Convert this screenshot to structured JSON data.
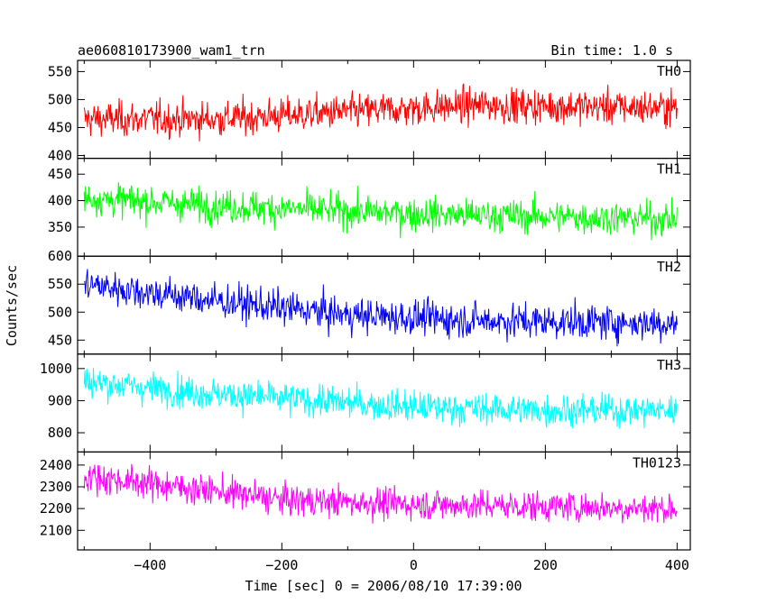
{
  "chart_data": {
    "type": "line",
    "title_left": "ae060810173900_wam1_trn",
    "title_right": "Bin time: 1.0 s",
    "xlabel": "Time [sec] 0 = 2006/08/10 17:39:00",
    "ylabel": "Counts/sec",
    "xlim": [
      -510,
      420
    ],
    "x_ticks": [
      -400,
      -200,
      0,
      200,
      400
    ],
    "x_start": -500,
    "x_end": 400,
    "grid": false,
    "panels": [
      {
        "name": "TH0",
        "color": "#ff0000",
        "ylim": [
          395,
          570
        ],
        "y_ticks": [
          400,
          450,
          500,
          550
        ],
        "trend": [
          [
            -500,
            465
          ],
          [
            -300,
            465
          ],
          [
            -100,
            478
          ],
          [
            100,
            490
          ],
          [
            400,
            485
          ]
        ],
        "noise": 22
      },
      {
        "name": "TH1",
        "color": "#00ff00",
        "ylim": [
          295,
          480
        ],
        "y_ticks": [
          350,
          400,
          450
        ],
        "trend": [
          [
            -500,
            405
          ],
          [
            -300,
            390
          ],
          [
            0,
            375
          ],
          [
            200,
            370
          ],
          [
            400,
            365
          ]
        ],
        "noise": 22
      },
      {
        "name": "TH2",
        "color": "#0000ff",
        "ylim": [
          425,
          600
        ],
        "y_ticks": [
          450,
          500,
          550,
          600
        ],
        "trend": [
          [
            -500,
            550
          ],
          [
            -300,
            520
          ],
          [
            -100,
            495
          ],
          [
            100,
            485
          ],
          [
            400,
            480
          ]
        ],
        "noise": 22
      },
      {
        "name": "TH3",
        "color": "#00ffff",
        "ylim": [
          740,
          1045
        ],
        "y_ticks": [
          800,
          900,
          1000
        ],
        "trend": [
          [
            -500,
            960
          ],
          [
            -300,
            920
          ],
          [
            0,
            880
          ],
          [
            200,
            870
          ],
          [
            400,
            870
          ]
        ],
        "noise": 35
      },
      {
        "name": "TH0123",
        "color": "#ff00ff",
        "ylim": [
          2010,
          2460
        ],
        "y_ticks": [
          2100,
          2200,
          2300,
          2400
        ],
        "trend": [
          [
            -500,
            2350
          ],
          [
            -300,
            2280
          ],
          [
            -200,
            2240
          ],
          [
            0,
            2220
          ],
          [
            400,
            2200
          ]
        ],
        "noise": 50
      }
    ]
  }
}
